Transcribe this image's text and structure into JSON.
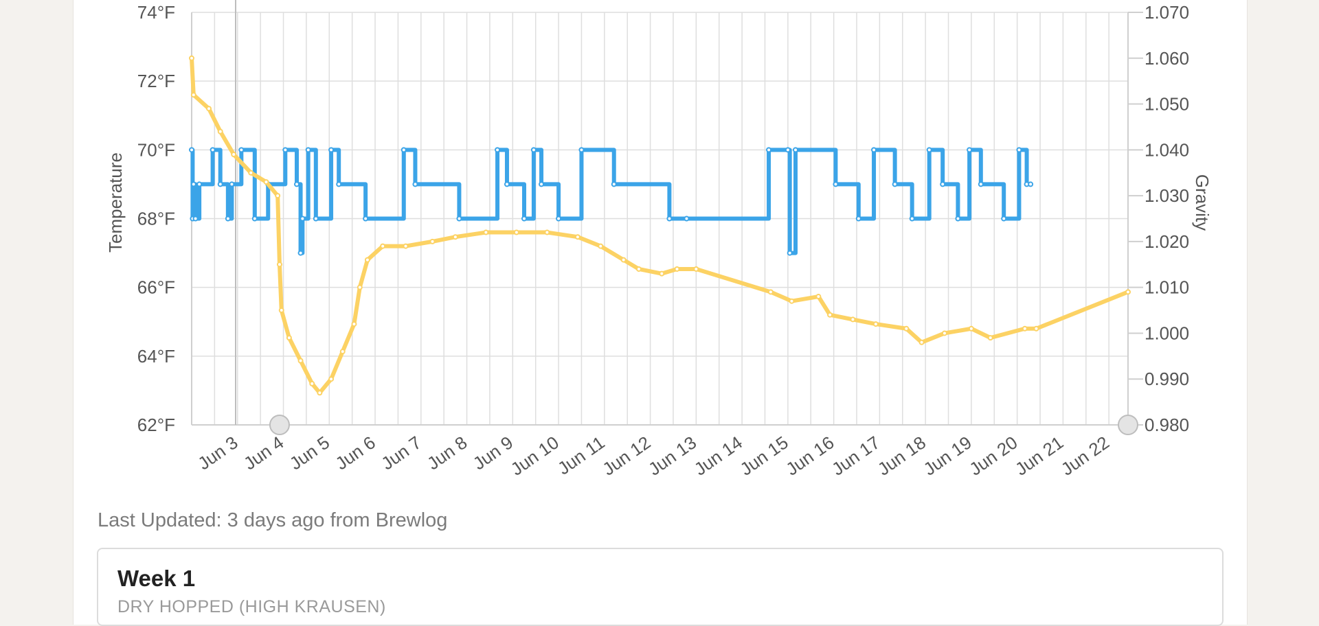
{
  "chart_data": {
    "type": "line",
    "title": "",
    "x_axis": {
      "type": "date",
      "tick_labels": [
        "Jun 3",
        "Jun 4",
        "Jun 5",
        "Jun 6",
        "Jun 7",
        "Jun 8",
        "Jun 9",
        "Jun 10",
        "Jun 11",
        "Jun 12",
        "Jun 13",
        "Jun 14",
        "Jun 15",
        "Jun 16",
        "Jun 17",
        "Jun 18",
        "Jun 19",
        "Jun 20",
        "Jun 21",
        "Jun 22"
      ],
      "range": [
        "Jun 2 2:00",
        "Jun 22 12:00"
      ],
      "label_rotation": "diagonal"
    },
    "y_axis_left": {
      "label": "Temperature",
      "unit": "°F",
      "range": [
        62,
        74
      ],
      "tick_labels": [
        "62°F",
        "64°F",
        "66°F",
        "68°F",
        "70°F",
        "72°F",
        "74°F"
      ]
    },
    "y_axis_right": {
      "label": "Gravity",
      "range": [
        0.98,
        1.07
      ],
      "tick_labels": [
        "0.980",
        "0.990",
        "1.000",
        "1.010",
        "1.020",
        "1.030",
        "1.040",
        "1.050",
        "1.060",
        "1.070"
      ]
    },
    "grid": true,
    "series": [
      {
        "name": "Temperature",
        "axis": "left",
        "color": "#3ba4e8",
        "style": "step",
        "points": [
          [
            "Jun 2 2:00",
            70
          ],
          [
            "Jun 2 2:30",
            68
          ],
          [
            "Jun 2 3:00",
            69
          ],
          [
            "Jun 2 4:00",
            68
          ],
          [
            "Jun 2 6:00",
            69
          ],
          [
            "Jun 2 13:00",
            70
          ],
          [
            "Jun 2 17:00",
            69
          ],
          [
            "Jun 2 21:00",
            68
          ],
          [
            "Jun 2 23:00",
            69
          ],
          [
            "Jun 3 4:00",
            70
          ],
          [
            "Jun 3 11:00",
            68
          ],
          [
            "Jun 3 18:00",
            69
          ],
          [
            "Jun 4 3:00",
            70
          ],
          [
            "Jun 4 9:00",
            69
          ],
          [
            "Jun 4 11:00",
            67
          ],
          [
            "Jun 4 12:00",
            68
          ],
          [
            "Jun 4 15:00",
            70
          ],
          [
            "Jun 4 19:00",
            68
          ],
          [
            "Jun 5 3:00",
            70
          ],
          [
            "Jun 5 7:00",
            69
          ],
          [
            "Jun 5 21:00",
            68
          ],
          [
            "Jun 6 17:00",
            70
          ],
          [
            "Jun 6 23:00",
            69
          ],
          [
            "Jun 7 22:00",
            68
          ],
          [
            "Jun 8 18:00",
            70
          ],
          [
            "Jun 8 23:00",
            69
          ],
          [
            "Jun 9 8:00",
            68
          ],
          [
            "Jun 9 13:00",
            70
          ],
          [
            "Jun 9 17:00",
            69
          ],
          [
            "Jun 10 2:00",
            68
          ],
          [
            "Jun 10 14:00",
            70
          ],
          [
            "Jun 11 7:00",
            69
          ],
          [
            "Jun 12 12:00",
            68
          ],
          [
            "Jun 12 21:00",
            68
          ],
          [
            "Jun 14 16:00",
            70
          ],
          [
            "Jun 15 2:00",
            70
          ],
          [
            "Jun 15 3:00",
            67
          ],
          [
            "Jun 15 6:00",
            70
          ],
          [
            "Jun 16 3:00",
            69
          ],
          [
            "Jun 16 15:00",
            68
          ],
          [
            "Jun 16 23:00",
            70
          ],
          [
            "Jun 17 10:00",
            69
          ],
          [
            "Jun 17 19:00",
            68
          ],
          [
            "Jun 18 4:00",
            70
          ],
          [
            "Jun 18 11:00",
            69
          ],
          [
            "Jun 18 19:00",
            68
          ],
          [
            "Jun 19 1:00",
            70
          ],
          [
            "Jun 19 7:00",
            69
          ],
          [
            "Jun 19 19:00",
            68
          ],
          [
            "Jun 20 3:00",
            70
          ],
          [
            "Jun 20 7:00",
            69
          ],
          [
            "Jun 20 9:00",
            69
          ]
        ]
      },
      {
        "name": "Gravity",
        "axis": "right",
        "color": "#fcd264",
        "style": "line",
        "points": [
          [
            "Jun 2 2:00",
            1.06
          ],
          [
            "Jun 2 3:00",
            1.052
          ],
          [
            "Jun 2 11:00",
            1.049
          ],
          [
            "Jun 2 17:00",
            1.044
          ],
          [
            "Jun 3 0:00",
            1.039
          ],
          [
            "Jun 3 9:00",
            1.035
          ],
          [
            "Jun 3 17:00",
            1.033
          ],
          [
            "Jun 3 23:00",
            1.03
          ],
          [
            "Jun 4 0:00",
            1.015
          ],
          [
            "Jun 4 1:00",
            1.005
          ],
          [
            "Jun 4 5:00",
            0.999
          ],
          [
            "Jun 4 11:00",
            0.994
          ],
          [
            "Jun 4 17:00",
            0.989
          ],
          [
            "Jun 4 21:00",
            0.987
          ],
          [
            "Jun 5 3:00",
            0.99
          ],
          [
            "Jun 5 9:00",
            0.996
          ],
          [
            "Jun 5 15:00",
            1.002
          ],
          [
            "Jun 5 18:00",
            1.01
          ],
          [
            "Jun 5 22:00",
            1.016
          ],
          [
            "Jun 6 6:00",
            1.019
          ],
          [
            "Jun 6 18:00",
            1.019
          ],
          [
            "Jun 7 8:00",
            1.02
          ],
          [
            "Jun 7 20:00",
            1.021
          ],
          [
            "Jun 8 12:00",
            1.022
          ],
          [
            "Jun 9 4:00",
            1.022
          ],
          [
            "Jun 9 20:00",
            1.022
          ],
          [
            "Jun 10 12:00",
            1.021
          ],
          [
            "Jun 11 0:00",
            1.019
          ],
          [
            "Jun 11 12:00",
            1.016
          ],
          [
            "Jun 11 20:00",
            1.014
          ],
          [
            "Jun 12 8:00",
            1.013
          ],
          [
            "Jun 12 16:00",
            1.014
          ],
          [
            "Jun 13 2:00",
            1.014
          ],
          [
            "Jun 14 17:00",
            1.009
          ],
          [
            "Jun 15 4:00",
            1.007
          ],
          [
            "Jun 15 18:00",
            1.008
          ],
          [
            "Jun 16 0:00",
            1.004
          ],
          [
            "Jun 16 12:00",
            1.003
          ],
          [
            "Jun 17 0:00",
            1.002
          ],
          [
            "Jun 17 16:00",
            1.001
          ],
          [
            "Jun 18 0:00",
            0.998
          ],
          [
            "Jun 18 12:00",
            1.0
          ],
          [
            "Jun 19 2:00",
            1.001
          ],
          [
            "Jun 19 12:00",
            0.999
          ],
          [
            "Jun 20 6:00",
            1.001
          ],
          [
            "Jun 20 12:00",
            1.001
          ],
          [
            "Jun 22 12:00",
            1.009
          ]
        ]
      }
    ],
    "navigator_handles": [
      "Jun 4",
      "Jun 22 12:00"
    ]
  },
  "footer": {
    "last_updated": "Last Updated: 3 days ago from Brewlog"
  },
  "note_card": {
    "title": "Week 1",
    "subtitle": "DRY HOPPED (HIGH KRAUSEN)"
  }
}
